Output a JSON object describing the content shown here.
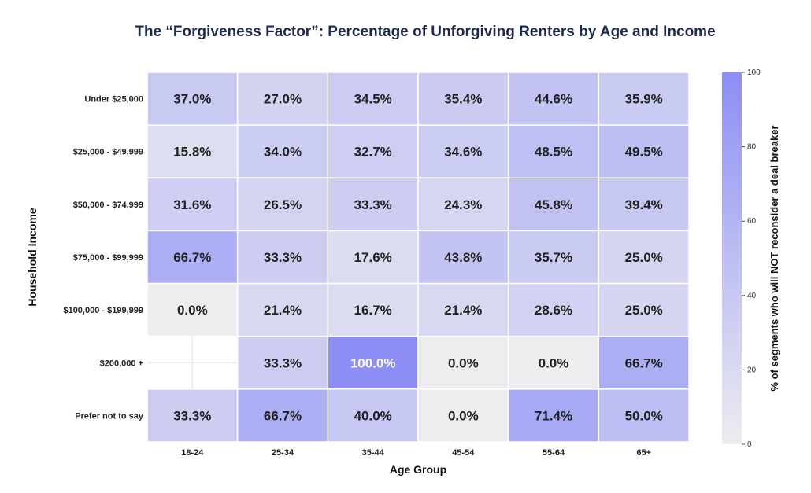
{
  "chart_data": {
    "type": "heatmap",
    "title": "The “Forgiveness Factor”: Percentage of Unforgiving Renters by Age and Income",
    "xlabel": "Age Group",
    "ylabel": "Household Income",
    "colorbar_label": "% of segments who will NOT reconsider a deal breaker",
    "x_categories": [
      "18-24",
      "25-34",
      "35-44",
      "45-54",
      "55-64",
      "65+"
    ],
    "y_categories": [
      "Under $25,000",
      "$25,000 - $49,999",
      "$50,000 - $74,999",
      "$75,000 - $99,999",
      "$100,000 - $199,999",
      "$200,000 +",
      "Prefer not to say"
    ],
    "values": [
      [
        37.0,
        27.0,
        34.5,
        35.4,
        44.6,
        35.9
      ],
      [
        15.8,
        34.0,
        32.7,
        34.6,
        48.5,
        49.5
      ],
      [
        31.6,
        26.5,
        33.3,
        24.3,
        45.8,
        39.4
      ],
      [
        66.7,
        33.3,
        17.6,
        43.8,
        35.7,
        25.0
      ],
      [
        0.0,
        21.4,
        16.7,
        21.4,
        28.6,
        25.0
      ],
      [
        null,
        33.3,
        100.0,
        0.0,
        0.0,
        66.7
      ],
      [
        33.3,
        66.7,
        40.0,
        0.0,
        71.4,
        50.0
      ]
    ],
    "value_suffix": "%",
    "vmin": 0,
    "vmax": 100,
    "colorbar_ticks": [
      0,
      20,
      40,
      60,
      80,
      100
    ],
    "colors": {
      "low": "#ededf0",
      "high": "#8c8ef5",
      "text_dark": "#222222",
      "text_light": "#ffffff"
    }
  }
}
